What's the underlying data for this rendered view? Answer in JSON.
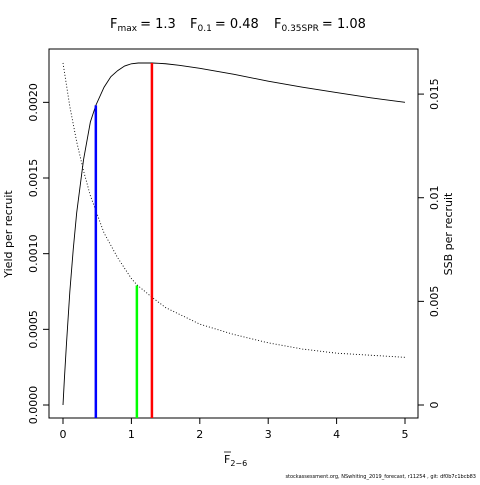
{
  "header": {
    "fmax_label": "F",
    "fmax_sub": "max",
    "fmax_value": "= 1.3",
    "f01_label": "F",
    "f01_sub": "0.1",
    "f01_value": "= 0.48",
    "fspr_label": "F",
    "fspr_sub": "0.35SPR",
    "fspr_value": "= 1.08"
  },
  "footer": {
    "text": "stockassessment.org, NSwhiting_2019_forecast, r11254 , git: df0b7c1bcb83"
  },
  "chart_data": {
    "type": "line",
    "xlabel": "F",
    "xlabel_sub": "2−6",
    "ylabel_left": "Yield per recruit",
    "ylabel_right": "SSB per recruit",
    "xlim": [
      0,
      5
    ],
    "ylim_left": [
      0,
      0.00226
    ],
    "ylim_right": [
      0,
      0.0165
    ],
    "x_ticks": [
      0,
      1,
      2,
      3,
      4,
      5
    ],
    "x_tick_labels": [
      "0",
      "1",
      "2",
      "3",
      "4",
      "5"
    ],
    "y_ticks_left": [
      0,
      0.0005,
      0.001,
      0.0015,
      0.002
    ],
    "y_tick_labels_left": [
      "0.0000",
      "0.0005",
      "0.0010",
      "0.0015",
      "0.0020"
    ],
    "y_ticks_right": [
      0,
      0.005,
      0.01,
      0.015
    ],
    "y_tick_labels_right": [
      "0",
      "0.005",
      "0.01",
      "0.015"
    ],
    "series": [
      {
        "line_style": "solid",
        "axis": "left",
        "color": "#000000",
        "x": [
          0,
          0.02,
          0.05,
          0.1,
          0.15,
          0.2,
          0.3,
          0.4,
          0.48,
          0.6,
          0.7,
          0.8,
          0.9,
          1.0,
          1.1,
          1.2,
          1.3,
          1.4,
          1.5,
          1.7,
          2.0,
          2.5,
          3.0,
          3.5,
          4.0,
          4.5,
          5.0
        ],
        "y": [
          0.0,
          0.00017,
          0.0004,
          0.00075,
          0.00103,
          0.00127,
          0.00162,
          0.00187,
          0.00198,
          0.0021,
          0.00217,
          0.00221,
          0.00224,
          0.002255,
          0.00226,
          0.00226,
          0.00226,
          0.002258,
          0.002255,
          0.002245,
          0.002225,
          0.002185,
          0.00214,
          0.0021,
          0.002065,
          0.00203,
          0.002
        ]
      },
      {
        "line_style": "dotted",
        "axis": "right",
        "color": "#000000",
        "x": [
          0,
          0.1,
          0.2,
          0.3,
          0.4,
          0.5,
          0.6,
          0.8,
          1.0,
          1.08,
          1.3,
          1.5,
          2.0,
          2.5,
          3.0,
          3.5,
          4.0,
          4.5,
          5.0
        ],
        "y": [
          0.0165,
          0.0144,
          0.0127,
          0.0113,
          0.0101,
          0.0092,
          0.0083,
          0.0071,
          0.0061,
          0.0058,
          0.0052,
          0.0047,
          0.0039,
          0.0034,
          0.003,
          0.0027,
          0.0025,
          0.0024,
          0.0023
        ]
      }
    ],
    "reference_lines": [
      {
        "x": 0.48,
        "color": "#0000ff",
        "y_top": 0.00198
      },
      {
        "x": 1.08,
        "color": "#00ff00",
        "y_top": 0.00079
      },
      {
        "x": 1.3,
        "color": "#ff0000",
        "y_top": 0.00226
      }
    ],
    "grid": false,
    "legend": "none"
  }
}
